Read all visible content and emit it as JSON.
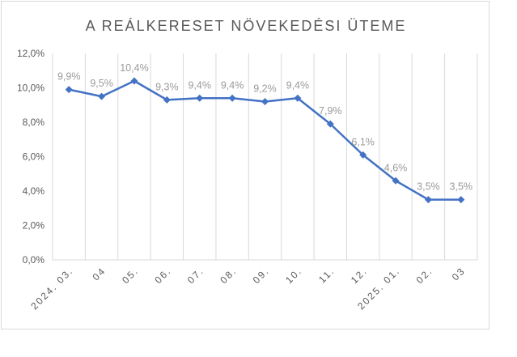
{
  "chart_data": {
    "type": "line",
    "title": "A REÁLKERESET NÖVEKEDÉSI ÜTEME",
    "categories": [
      "2024. 03.",
      "04",
      "05.",
      "06.",
      "07.",
      "08.",
      "09.",
      "10.",
      "11.",
      "12.",
      "2025. 01.",
      "02.",
      "03"
    ],
    "values": [
      9.9,
      9.5,
      10.4,
      9.3,
      9.4,
      9.4,
      9.2,
      9.4,
      7.9,
      6.1,
      4.6,
      3.5,
      3.5
    ],
    "data_labels": [
      "9,9%",
      "9,5%",
      "10,4%",
      "9,3%",
      "9,4%",
      "9,4%",
      "9,2%",
      "9,4%",
      "7,9%",
      "6,1%",
      "4,6%",
      "3,5%",
      "3,5%"
    ],
    "y_ticks": [
      "0,0%",
      "2,0%",
      "4,0%",
      "6,0%",
      "8,0%",
      "10,0%",
      "12,0%"
    ],
    "ylim": [
      0,
      12
    ],
    "grid": "vertical",
    "legend": "none",
    "line_color": "#4472c4"
  }
}
